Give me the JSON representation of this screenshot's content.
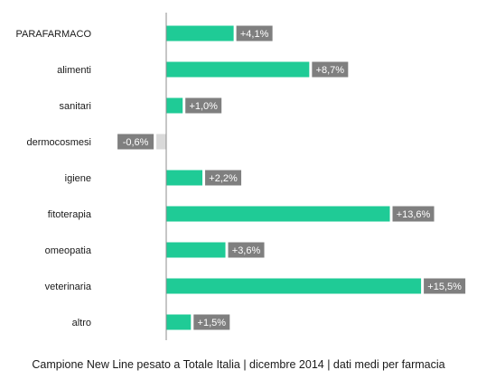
{
  "chart_data": {
    "type": "bar",
    "orientation": "horizontal",
    "categories": [
      "PARAFARMACO",
      "alimenti",
      "sanitari",
      "dermocosmesi",
      "igiene",
      "fitoterapia",
      "omeopatia",
      "veterinaria",
      "altro"
    ],
    "values": [
      4.1,
      8.7,
      1.0,
      -0.6,
      2.2,
      13.6,
      3.6,
      15.5,
      1.5
    ],
    "value_labels": [
      "+4,1%",
      "+8,7%",
      "+1,0%",
      "-0,6%",
      "+2,2%",
      "+13,6%",
      "+3,6%",
      "+15,5%",
      "+1,5%"
    ],
    "xlim": [
      -2.8,
      15.5
    ],
    "grid": false,
    "colors": {
      "positive_bar": "#1fcb96",
      "negative_bar": "#d9d9d9",
      "label_box": "#7f7f7f",
      "axis": "#8c8c8c"
    }
  },
  "footer": "Campione New Line pesato a Totale Italia | dicembre 2014 | dati medi per farmacia"
}
